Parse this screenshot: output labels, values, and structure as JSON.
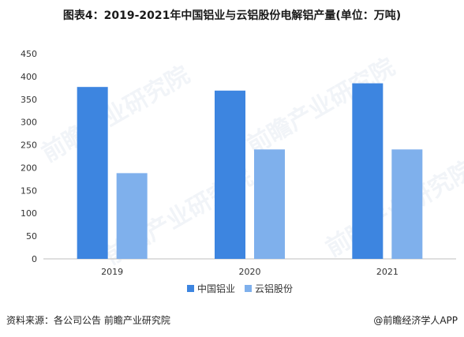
{
  "title": "图表4：2019-2021年中国铝业与云铝股份电解铝产量(单位：万吨)",
  "source": "资料来源：各公司公告 前瞻产业研究院",
  "credit": "@前瞻经济学人APP",
  "watermark": "前瞻产业研究院",
  "colors": {
    "series1": "#3d85e0",
    "series2": "#7fb0ec"
  },
  "chart_data": {
    "type": "bar",
    "categories": [
      "2019",
      "2020",
      "2021"
    ],
    "series": [
      {
        "name": "中国铝业",
        "values": [
          377,
          369,
          385
        ]
      },
      {
        "name": "云铝股份",
        "values": [
          188,
          240,
          240
        ]
      }
    ],
    "ylim": [
      0,
      450
    ],
    "yticks": [
      "0",
      "50",
      "100",
      "150",
      "200",
      "250",
      "300",
      "350",
      "400",
      "450"
    ],
    "grid": false,
    "legend": "bottom"
  }
}
